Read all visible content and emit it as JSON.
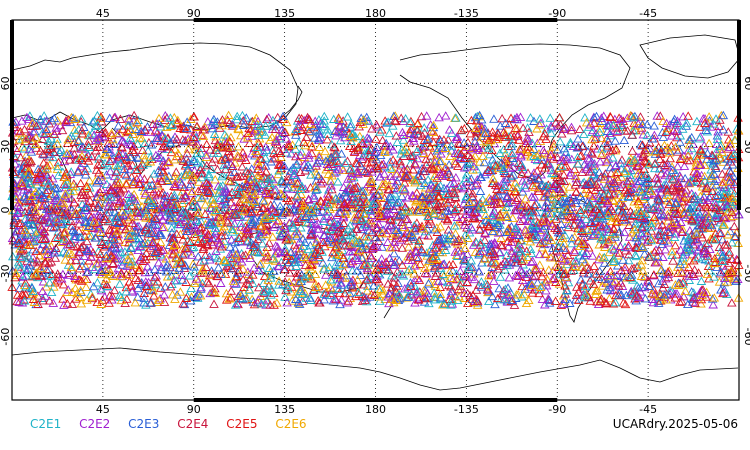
{
  "map": {
    "projection": "cylindrical equidistant",
    "central_longitude": 180,
    "top_lon_labels": [
      "45",
      "90",
      "135",
      "180",
      "-135",
      "-90",
      "-45"
    ],
    "bottom_lon_labels": [
      "45",
      "90",
      "135",
      "180",
      "-135",
      "-90",
      "-45"
    ],
    "tick_lons": [
      45,
      90,
      135,
      180,
      -135,
      -90,
      -45
    ],
    "lat_labels": [
      "60",
      "30",
      "0",
      "-30",
      "-60"
    ],
    "tick_lats": [
      60,
      30,
      0,
      -30,
      -60
    ],
    "observation_lat_range": [
      -45,
      45
    ],
    "marker": "triangle-outline",
    "observation_count_estimate": 6000
  },
  "legend": [
    {
      "label": "C2E1",
      "color": "#1fb3c8"
    },
    {
      "label": "C2E2",
      "color": "#a020d0"
    },
    {
      "label": "C2E3",
      "color": "#2a5fd6"
    },
    {
      "label": "C2E4",
      "color": "#c8143c"
    },
    {
      "label": "C2E5",
      "color": "#e01414"
    },
    {
      "label": "C2E6",
      "color": "#f0a800"
    }
  ],
  "footer": {
    "product_date": "UCARdry.2025-05-06"
  }
}
